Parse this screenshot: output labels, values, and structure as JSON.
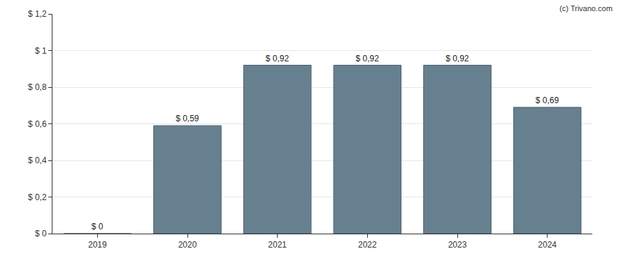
{
  "chart_data": {
    "type": "bar",
    "categories": [
      "2019",
      "2020",
      "2021",
      "2022",
      "2023",
      "2024"
    ],
    "values": [
      0,
      0.59,
      0.92,
      0.92,
      0.92,
      0.69
    ],
    "value_labels": [
      "$ 0",
      "$ 0,59",
      "$ 0,92",
      "$ 0,92",
      "$ 0,92",
      "$ 0,69"
    ],
    "data_labels": true,
    "color": "#66808f",
    "ylim": [
      0,
      1.2
    ],
    "yticks": [
      {
        "value": 0,
        "label": "$ 0"
      },
      {
        "value": 0.2,
        "label": "$ 0,2"
      },
      {
        "value": 0.4,
        "label": "$ 0,4"
      },
      {
        "value": 0.6,
        "label": "$ 0,6"
      },
      {
        "value": 0.8,
        "label": "$ 0,8"
      },
      {
        "value": 1,
        "label": "$ 1"
      },
      {
        "value": 1.2,
        "label": "$ 1,2"
      }
    ],
    "grid": true,
    "annotations": [
      {
        "text": "(c) Trivano.com"
      }
    ]
  }
}
